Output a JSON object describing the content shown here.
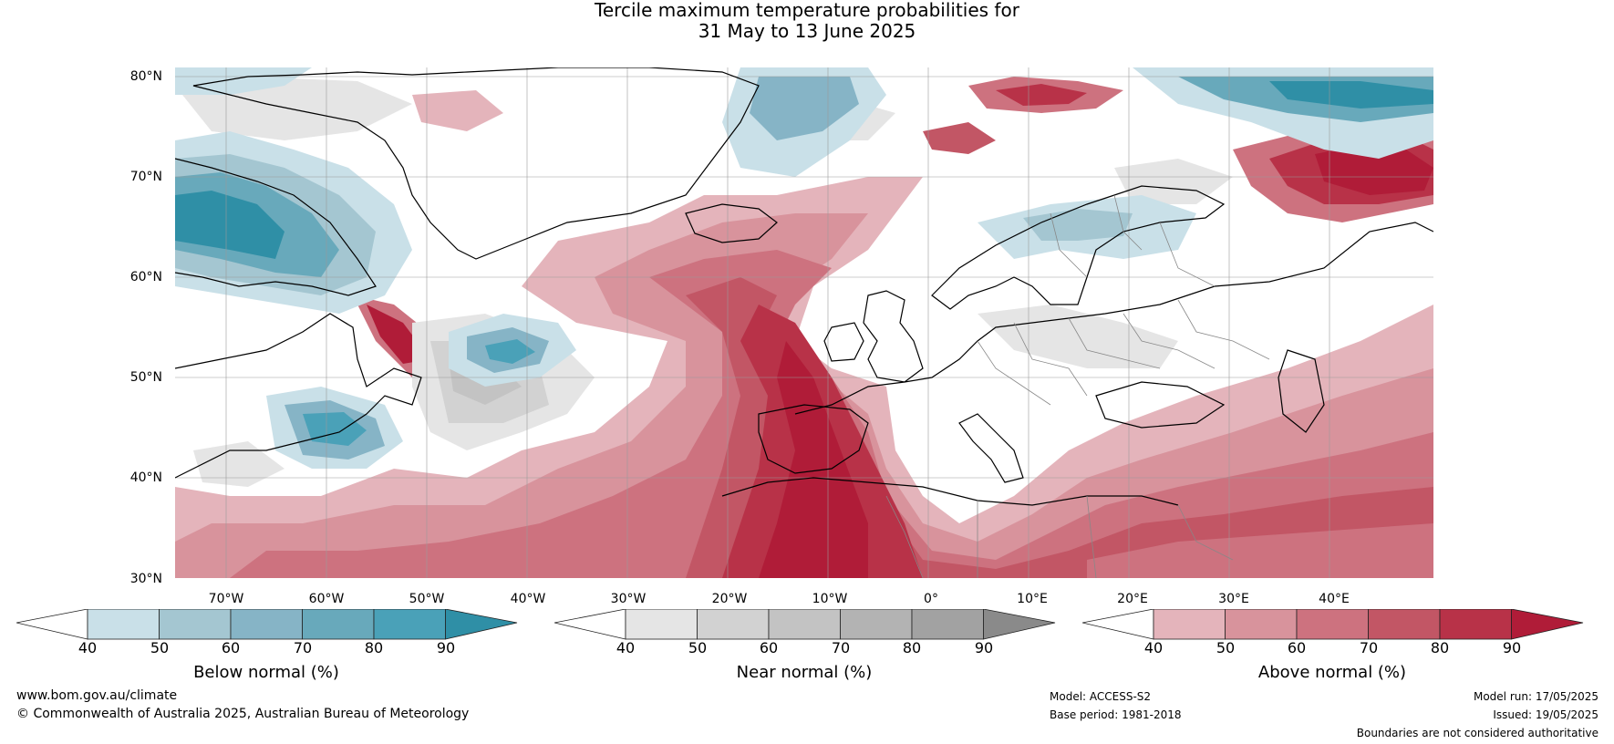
{
  "title": {
    "line1": "Tercile maximum temperature probabilities for",
    "line2": "31 May to 13 June 2025"
  },
  "latitude_labels": [
    "80°N",
    "70°N",
    "60°N",
    "50°N",
    "40°N",
    "30°N"
  ],
  "longitude_labels": [
    "70°W",
    "60°W",
    "50°W",
    "40°W",
    "30°W",
    "20°W",
    "10°W",
    "0°",
    "10°E",
    "20°E",
    "30°E",
    "40°E"
  ],
  "colorbars": [
    {
      "title": "Below normal (%)",
      "ticks": [
        "40",
        "50",
        "60",
        "70",
        "80",
        "90"
      ],
      "colors": [
        "#ffffff",
        "#c9e0e8",
        "#a4c6d1",
        "#86b4c6",
        "#68a9bb",
        "#4aa1b8",
        "#2f8fa6"
      ]
    },
    {
      "title": "Near normal (%)",
      "ticks": [
        "40",
        "50",
        "60",
        "70",
        "80",
        "90"
      ],
      "colors": [
        "#ffffff",
        "#e5e5e5",
        "#d2d2d2",
        "#c3c3c3",
        "#b3b3b3",
        "#a2a2a2",
        "#8a8a8a"
      ]
    },
    {
      "title": "Above normal (%)",
      "ticks": [
        "40",
        "50",
        "60",
        "70",
        "80",
        "90"
      ],
      "colors": [
        "#ffffff",
        "#e4b4bb",
        "#d8939c",
        "#cd727f",
        "#c25665",
        "#b83248",
        "#b01c38"
      ]
    }
  ],
  "footer": {
    "website": "www.bom.gov.au/climate",
    "copyright": "© Commonwealth of Australia 2025, Australian Bureau of Meteorology",
    "model": "Model: ACCESS-S2",
    "base_period": "Base period: 1981-2018",
    "model_run": "Model run: 17/05/2025",
    "issued": "Issued: 19/05/2025",
    "disclaimer": "Boundaries are not considered authoritative"
  }
}
